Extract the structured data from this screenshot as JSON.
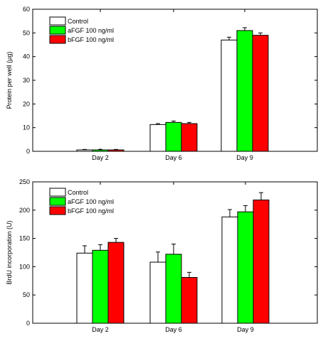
{
  "chart_data": [
    {
      "type": "bar",
      "categories": [
        "Day 2",
        "Day 6",
        "Day 9"
      ],
      "series": [
        {
          "name": "Control",
          "values": [
            0.6,
            11.3,
            47.0
          ],
          "errors": [
            0.2,
            0.4,
            1.2
          ],
          "color": "#ffffff"
        },
        {
          "name": "aFGF 100 ng/ml",
          "values": [
            0.6,
            12.2,
            51.0
          ],
          "errors": [
            0.2,
            0.6,
            1.2
          ],
          "color": "#00ff00"
        },
        {
          "name": "bFGF 100 ng/ml",
          "values": [
            0.6,
            11.7,
            49.0
          ],
          "errors": [
            0.2,
            0.5,
            1.0
          ],
          "color": "#ff0000"
        }
      ],
      "xlabel": "",
      "ylabel": "Protein per well (µg)",
      "ylim": [
        0,
        60
      ],
      "yticks": [
        0,
        10,
        20,
        30,
        40,
        50,
        60
      ],
      "legend_position": "top-left",
      "grid": false
    },
    {
      "type": "bar",
      "categories": [
        "Day 2",
        "Day 6",
        "Day 9"
      ],
      "series": [
        {
          "name": "Control",
          "values": [
            124,
            108,
            188
          ],
          "errors": [
            13,
            18,
            13
          ],
          "color": "#ffffff"
        },
        {
          "name": "aFGF 100 ng/ml",
          "values": [
            129,
            122,
            197
          ],
          "errors": [
            10,
            18,
            11
          ],
          "color": "#00ff00"
        },
        {
          "name": "bFGF 100 ng/ml",
          "values": [
            143,
            81,
            218
          ],
          "errors": [
            7,
            9,
            13
          ],
          "color": "#ff0000"
        }
      ],
      "xlabel": "",
      "ylabel": "BrdU incorporation (U)",
      "ylim": [
        0,
        250
      ],
      "yticks": [
        0,
        50,
        100,
        150,
        200,
        250
      ],
      "legend_position": "top-left",
      "grid": false
    }
  ]
}
